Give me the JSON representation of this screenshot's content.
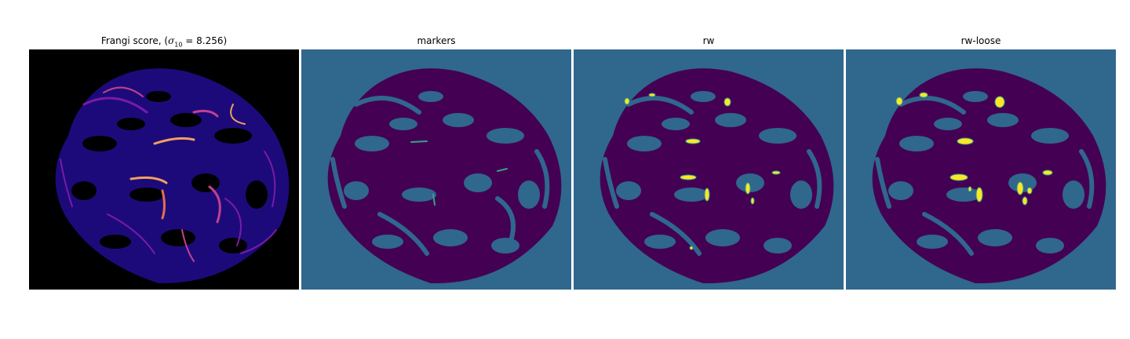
{
  "figure": {
    "panels": [
      {
        "id": "frangi",
        "title_prefix": "Frangi score, (",
        "title_math_symbol": "σ",
        "title_math_subscript": "10",
        "title_math_rest": " = 8.256)"
      },
      {
        "id": "markers",
        "title": "markers"
      },
      {
        "id": "rw",
        "title": "rw"
      },
      {
        "id": "rw-loose",
        "title": "rw-loose"
      }
    ]
  },
  "colors": {
    "background_black": "#000000",
    "frangi_low": "#1d0a7a",
    "frangi_mid": "#7a1aa8",
    "frangi_high": "#f0a060",
    "segment_background": "#30678d",
    "segment_tissue": "#440154",
    "segment_highlight": "#fde725"
  }
}
